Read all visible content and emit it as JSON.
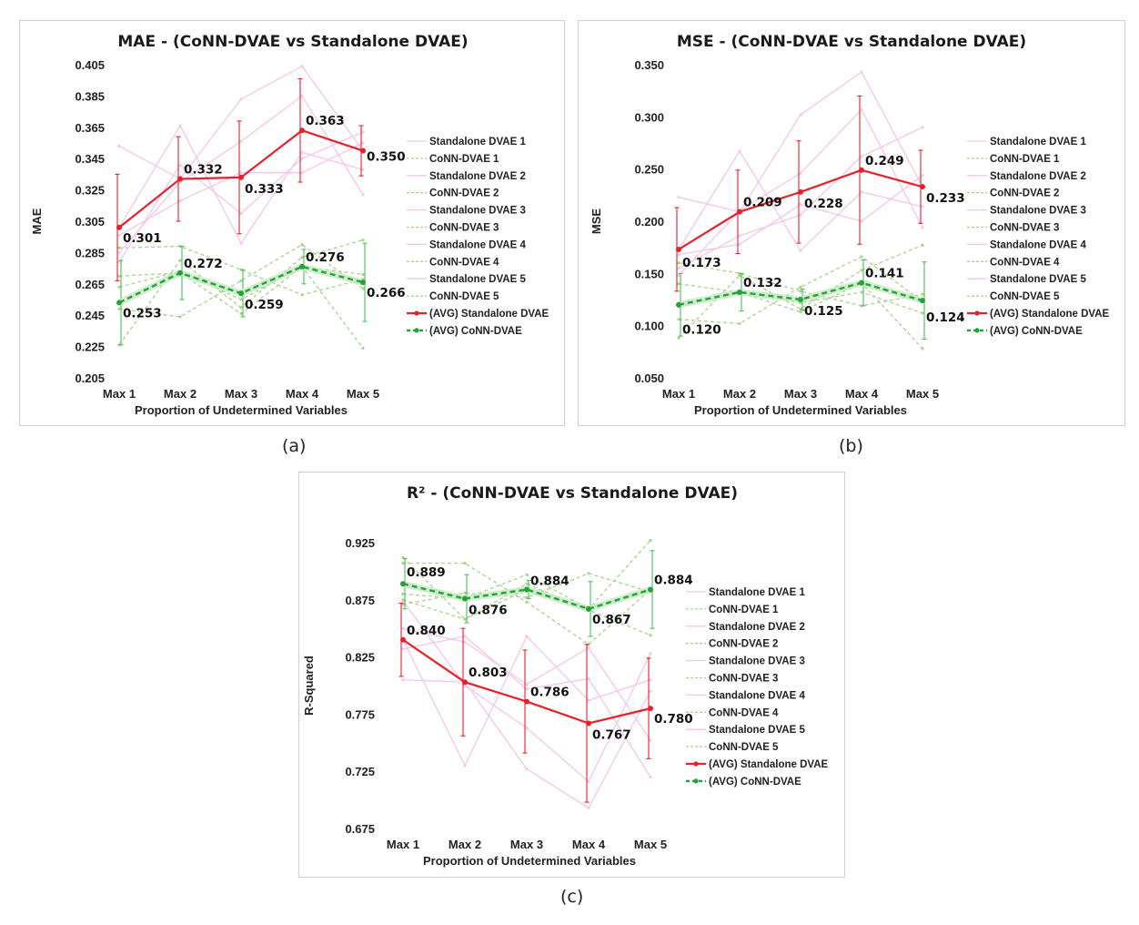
{
  "captions": [
    "(a)",
    "(b)",
    "(c)"
  ],
  "legend_labels": [
    "Standalone DVAE 1",
    "CoNN-DVAE 1",
    "Standalone DVAE 2",
    "CoNN-DVAE 2",
    "Standalone DVAE 3",
    "CoNN-DVAE 3",
    "Standalone DVAE 4",
    "CoNN-DVAE 4",
    "Standalone DVAE 5",
    "CoNN-DVAE 5",
    "(AVG) Standalone DVAE",
    "(AVG) CoNN-DVAE"
  ],
  "colors": {
    "standalone_run": "#f4c6ea",
    "conn_run": "#a9d38f",
    "standalone_avg": "#e8202a",
    "conn_avg": "#1fa43a",
    "conn_avg_glow": "#c7e9c0",
    "conn_err": "#4cbf5a"
  },
  "chart_data": [
    {
      "type": "line",
      "title": "MAE - (CoNN-DVAE vs Standalone DVAE)",
      "xlabel": "Proportion of Undetermined Variables",
      "ylabel": "MAE",
      "categories": [
        "Max 1",
        "Max 2",
        "Max 3",
        "Max 4",
        "Max 5"
      ],
      "ylim": [
        0.205,
        0.405
      ],
      "yticks": [
        "0.405",
        "0.385",
        "0.365",
        "0.345",
        "0.325",
        "0.305",
        "0.285",
        "0.265",
        "0.245",
        "0.225",
        "0.205"
      ],
      "series": [
        {
          "name": "Standalone DVAE 1",
          "values": [
            0.353,
            0.332,
            0.383,
            0.404,
            0.35
          ]
        },
        {
          "name": "CoNN-DVAE 1",
          "values": [
            0.27,
            0.272,
            0.246,
            0.276,
            0.224
          ]
        },
        {
          "name": "Standalone DVAE 2",
          "values": [
            0.301,
            0.366,
            0.291,
            0.349,
            0.338
          ]
        },
        {
          "name": "CoNN-DVAE 2",
          "values": [
            0.288,
            0.289,
            0.274,
            0.258,
            0.268
          ]
        },
        {
          "name": "Standalone DVAE 3",
          "values": [
            0.285,
            0.33,
            0.356,
            0.385,
            0.322
          ]
        },
        {
          "name": "CoNN-DVAE 3",
          "values": [
            0.249,
            0.244,
            0.267,
            0.29,
            0.262
          ]
        },
        {
          "name": "Standalone DVAE 4",
          "values": [
            0.296,
            0.318,
            0.336,
            0.336,
            0.355
          ]
        },
        {
          "name": "CoNN-DVAE 4",
          "values": [
            0.226,
            0.28,
            0.25,
            0.282,
            0.293
          ]
        },
        {
          "name": "Standalone DVAE 5",
          "values": [
            0.279,
            0.341,
            0.31,
            0.345,
            0.362
          ]
        },
        {
          "name": "CoNN-DVAE 5",
          "values": [
            0.263,
            0.273,
            0.255,
            0.276,
            0.271
          ]
        },
        {
          "name": "(AVG) Standalone DVAE",
          "values": [
            0.301,
            0.332,
            0.333,
            0.363,
            0.35
          ],
          "error": [
            0.034,
            0.027,
            0.036,
            0.033,
            0.016
          ]
        },
        {
          "name": "(AVG) CoNN-DVAE",
          "values": [
            0.253,
            0.272,
            0.259,
            0.276,
            0.266
          ],
          "error": [
            0.027,
            0.017,
            0.015,
            0.011,
            0.025
          ]
        }
      ],
      "data_labels": {
        "standalone": [
          "0.301",
          "0.332",
          "0.333",
          "0.363",
          "0.350"
        ],
        "conn": [
          "0.253",
          "0.272",
          "0.259",
          "0.276",
          "0.266"
        ]
      },
      "legend": "right",
      "grid": false
    },
    {
      "type": "line",
      "title": "MSE - (CoNN-DVAE vs Standalone DVAE)",
      "xlabel": "Proportion of Undetermined Variables",
      "ylabel": "MSE",
      "categories": [
        "Max 1",
        "Max 2",
        "Max 3",
        "Max 4",
        "Max 5"
      ],
      "ylim": [
        0.05,
        0.35
      ],
      "yticks": [
        "0.350",
        "0.300",
        "0.250",
        "0.200",
        "0.150",
        "0.100",
        "0.050"
      ],
      "series": [
        {
          "name": "Standalone DVAE 1",
          "values": [
            0.223,
            0.209,
            0.302,
            0.343,
            0.233
          ]
        },
        {
          "name": "CoNN-DVAE 1",
          "values": [
            0.14,
            0.132,
            0.113,
            0.141,
            0.078
          ]
        },
        {
          "name": "Standalone DVAE 2",
          "values": [
            0.173,
            0.267,
            0.172,
            0.228,
            0.214
          ]
        },
        {
          "name": "CoNN-DVAE 2",
          "values": [
            0.16,
            0.15,
            0.133,
            0.119,
            0.13
          ]
        },
        {
          "name": "Standalone DVAE 3",
          "values": [
            0.148,
            0.21,
            0.246,
            0.307,
            0.194
          ]
        },
        {
          "name": "CoNN-DVAE 3",
          "values": [
            0.106,
            0.102,
            0.137,
            0.166,
            0.123
          ]
        },
        {
          "name": "Standalone DVAE 4",
          "values": [
            0.168,
            0.178,
            0.216,
            0.2,
            0.244
          ]
        },
        {
          "name": "CoNN-DVAE 4",
          "values": [
            0.088,
            0.148,
            0.116,
            0.153,
            0.177
          ]
        },
        {
          "name": "Standalone DVAE 5",
          "values": [
            0.155,
            0.186,
            0.206,
            0.262,
            0.29
          ]
        },
        {
          "name": "CoNN-DVAE 5",
          "values": [
            0.118,
            0.132,
            0.122,
            0.132,
            0.112
          ]
        },
        {
          "name": "(AVG) Standalone DVAE",
          "values": [
            0.173,
            0.209,
            0.228,
            0.249,
            0.233
          ],
          "error": [
            0.04,
            0.04,
            0.049,
            0.071,
            0.035
          ]
        },
        {
          "name": "(AVG) CoNN-DVAE",
          "values": [
            0.12,
            0.132,
            0.125,
            0.141,
            0.124
          ],
          "error": [
            0.03,
            0.018,
            0.01,
            0.022,
            0.037
          ]
        }
      ],
      "data_labels": {
        "standalone": [
          "0.173",
          "0.209",
          "0.228",
          "0.249",
          "0.233"
        ],
        "conn": [
          "0.120",
          "0.132",
          "0.125",
          "0.141",
          "0.124"
        ]
      },
      "legend": "right",
      "grid": false
    },
    {
      "type": "line",
      "title": "R² - (CoNN-DVAE vs Standalone DVAE)",
      "xlabel": "Proportion of Undetermined Variables",
      "ylabel": "R-Squared",
      "categories": [
        "Max 1",
        "Max 2",
        "Max 3",
        "Max 4",
        "Max 5"
      ],
      "ylim": [
        0.675,
        0.925
      ],
      "yticks": [
        "0.925",
        "0.875",
        "0.825",
        "0.775",
        "0.725",
        "0.675"
      ],
      "series": [
        {
          "name": "Standalone DVAE 1",
          "values": [
            0.805,
            0.803,
            0.727,
            0.693,
            0.795
          ]
        },
        {
          "name": "CoNN-DVAE 1",
          "values": [
            0.88,
            0.876,
            0.897,
            0.867,
            0.927
          ]
        },
        {
          "name": "Standalone DVAE 2",
          "values": [
            0.84,
            0.73,
            0.843,
            0.787,
            0.805
          ]
        },
        {
          "name": "CoNN-DVAE 2",
          "values": [
            0.871,
            0.881,
            0.877,
            0.898,
            0.882
          ]
        },
        {
          "name": "Standalone DVAE 3",
          "values": [
            0.874,
            0.8,
            0.763,
            0.716,
            0.828
          ]
        },
        {
          "name": "CoNN-DVAE 3",
          "values": [
            0.907,
            0.907,
            0.873,
            0.836,
            0.884
          ]
        },
        {
          "name": "Standalone DVAE 4",
          "values": [
            0.85,
            0.838,
            0.801,
            0.833,
            0.752
          ]
        },
        {
          "name": "CoNN-DVAE 4",
          "values": [
            0.912,
            0.858,
            0.889,
            0.866,
            0.844
          ]
        },
        {
          "name": "Standalone DVAE 5",
          "values": [
            0.832,
            0.843,
            0.797,
            0.806,
            0.72
          ]
        },
        {
          "name": "CoNN-DVAE 5",
          "values": [
            0.875,
            0.858,
            0.884,
            0.868,
            0.883
          ]
        },
        {
          "name": "(AVG) Standalone DVAE",
          "values": [
            0.84,
            0.803,
            0.786,
            0.767,
            0.78
          ],
          "error": [
            0.032,
            0.047,
            0.045,
            0.069,
            0.044
          ]
        },
        {
          "name": "(AVG) CoNN-DVAE",
          "values": [
            0.889,
            0.876,
            0.884,
            0.867,
            0.884
          ],
          "error": [
            0.022,
            0.021,
            0.008,
            0.024,
            0.034
          ]
        }
      ],
      "data_labels": {
        "standalone": [
          "0.840",
          "0.803",
          "0.786",
          "0.767",
          "0.780"
        ],
        "conn": [
          "0.889",
          "0.876",
          "0.884",
          "0.867",
          "0.884"
        ]
      },
      "legend": "right",
      "grid": false
    }
  ]
}
